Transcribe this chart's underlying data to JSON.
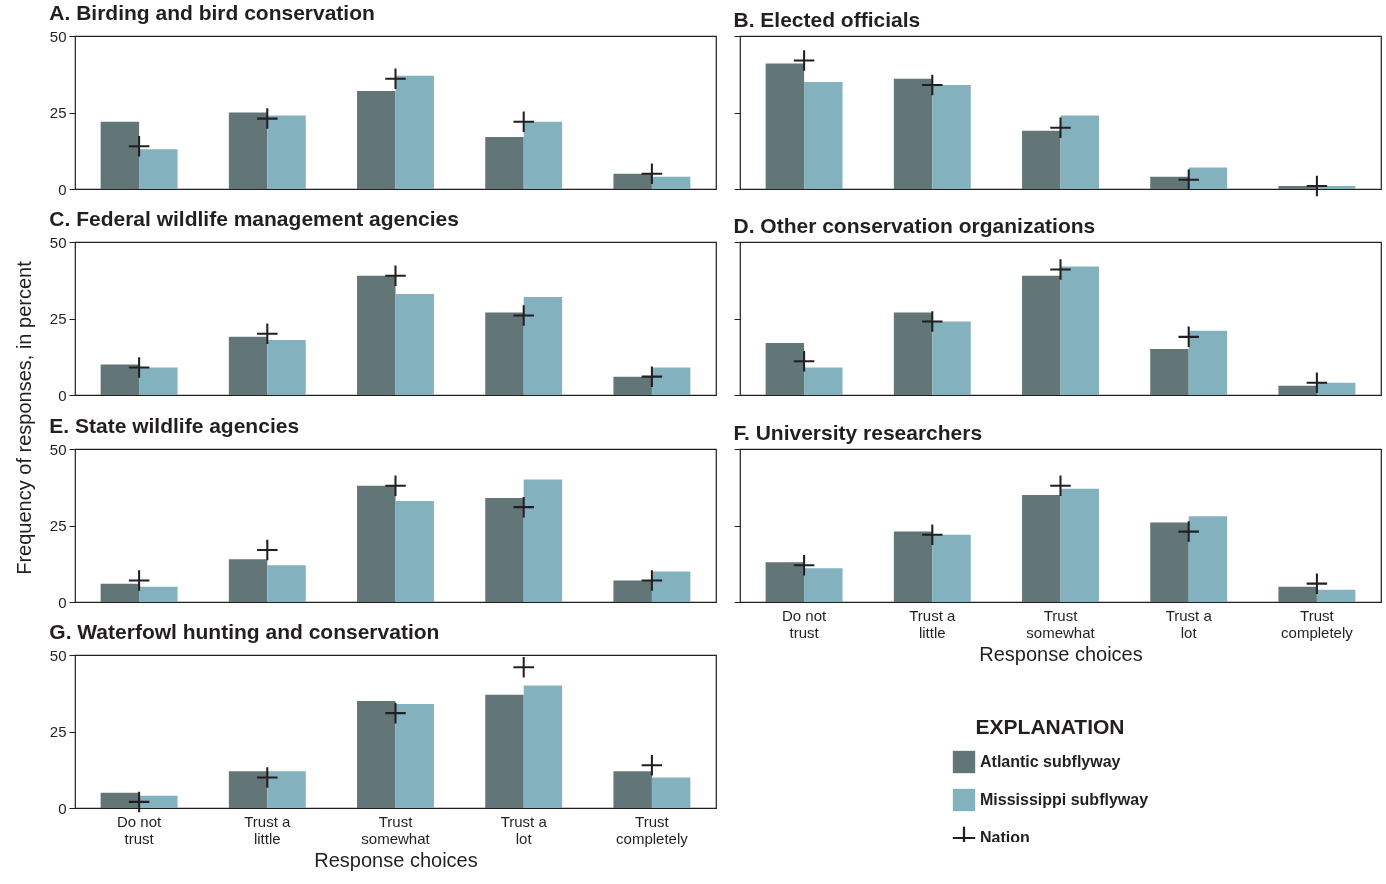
{
  "chart_data": [
    {
      "type": "bar",
      "title": "A. Birding and bird conservation",
      "categories": [
        "Do not trust",
        "Trust a little",
        "Trust somewhat",
        "Trust a lot",
        "Trust completely"
      ],
      "ylim": [
        0,
        50
      ],
      "yticks": [
        0,
        25,
        50
      ],
      "tick_labels": "y",
      "series": [
        {
          "color": "#627577",
          "values": [
            22,
            25,
            32,
            17,
            5
          ]
        },
        {
          "color": "#84b1be",
          "values": [
            13,
            24,
            37,
            22,
            4
          ]
        },
        {
          "type": "scatter",
          "marker": "cross",
          "color": "#231f20",
          "x": [
            "Do not trust",
            "Trust a little",
            "Trust somewhat",
            "Trust a lot",
            "Trust completely"
          ],
          "values": [
            14,
            23,
            36,
            22,
            5
          ]
        }
      ]
    },
    {
      "type": "bar",
      "title": "B. Elected officials",
      "categories": [
        "Do not trust",
        "Trust a little",
        "Trust somewhat",
        "Trust a lot",
        "Trust completely"
      ],
      "ylim": [
        0,
        50
      ],
      "yticks": [
        {
          "value": 0,
          "label": null
        },
        {
          "value": 25,
          "label": null
        },
        {
          "value": 50,
          "label": null
        }
      ],
      "tick_labels": false,
      "series": [
        {
          "color": "#627577",
          "values": [
            41,
            36,
            19,
            4,
            1
          ]
        },
        {
          "color": "#84b1be",
          "values": [
            35,
            34,
            24,
            7,
            1
          ]
        },
        {
          "type": "scatter",
          "marker": "cross",
          "color": "#231f20",
          "x": [
            "Do not trust",
            "Trust a little",
            "Trust somewhat",
            "Trust a lot",
            "Trust completely"
          ],
          "values": [
            42,
            34,
            20,
            3,
            1
          ]
        }
      ]
    },
    {
      "type": "bar",
      "title": "C. Federal wildlife management agencies",
      "categories": [
        "Do not trust",
        "Trust a little",
        "Trust somewhat",
        "Trust a lot",
        "Trust completely"
      ],
      "ylim": [
        0,
        50
      ],
      "yticks": [
        0,
        25,
        50
      ],
      "tick_labels": "y",
      "series": [
        {
          "color": "#627577",
          "values": [
            10,
            19,
            39,
            27,
            6
          ]
        },
        {
          "color": "#84b1be",
          "values": [
            9,
            18,
            33,
            32,
            9
          ]
        },
        {
          "type": "scatter",
          "marker": "cross",
          "color": "#231f20",
          "x": [
            "Do not trust",
            "Trust a little",
            "Trust somewhat",
            "Trust a lot",
            "Trust completely"
          ],
          "values": [
            9,
            20,
            39,
            26,
            6
          ]
        }
      ]
    },
    {
      "type": "bar",
      "title": "D. Other conservation organizations",
      "categories": [
        "Do not trust",
        "Trust a little",
        "Trust somewhat",
        "Trust a lot",
        "Trust completely"
      ],
      "ylim": [
        0,
        50
      ],
      "yticks": [
        {
          "value": 0,
          "label": null
        },
        {
          "value": 25,
          "label": null
        },
        {
          "value": 50,
          "label": null
        }
      ],
      "tick_labels": false,
      "series": [
        {
          "color": "#627577",
          "values": [
            17,
            27,
            39,
            15,
            3
          ]
        },
        {
          "color": "#84b1be",
          "values": [
            9,
            24,
            42,
            21,
            4
          ]
        },
        {
          "type": "scatter",
          "marker": "cross",
          "color": "#231f20",
          "x": [
            "Do not trust",
            "Trust a little",
            "Trust somewhat",
            "Trust a lot",
            "Trust completely"
          ],
          "values": [
            11,
            24,
            41,
            19,
            4
          ]
        }
      ]
    },
    {
      "type": "bar",
      "title": "E. State wildlife agencies",
      "ylabel": "Frequency of responses, in percent",
      "categories": [
        "Do not trust",
        "Trust a little",
        "Trust somewhat",
        "Trust a lot",
        "Trust completely"
      ],
      "ylim": [
        0,
        50
      ],
      "yticks": [
        0,
        25,
        50
      ],
      "tick_labels": "y",
      "series": [
        {
          "color": "#627577",
          "values": [
            6,
            14,
            38,
            34,
            7
          ]
        },
        {
          "color": "#84b1be",
          "values": [
            5,
            12,
            33,
            40,
            10
          ]
        },
        {
          "type": "scatter",
          "marker": "cross",
          "color": "#231f20",
          "x": [
            "Do not trust",
            "Trust a little",
            "Trust somewhat",
            "Trust a lot",
            "Trust completely"
          ],
          "values": [
            7,
            17,
            38,
            31,
            7
          ]
        }
      ]
    },
    {
      "type": "bar",
      "title": "F. University researchers",
      "xlabel": "Response choices",
      "categories": [
        "Do not trust",
        "Trust a little",
        "Trust somewhat",
        "Trust a lot",
        "Trust completely"
      ],
      "ylim": [
        0,
        50
      ],
      "yticks": [
        {
          "value": 0,
          "label": null
        },
        {
          "value": 25,
          "label": null
        },
        {
          "value": 50,
          "label": null
        }
      ],
      "tick_labels": "x",
      "legend": "bottom",
      "legend_title": "EXPLANATION",
      "series": [
        {
          "name": "Atlantic subflyway",
          "color": "#627577",
          "values": [
            13,
            23,
            35,
            26,
            5
          ]
        },
        {
          "name": "Mississippi subflyway",
          "color": "#84b1be",
          "values": [
            11,
            22,
            37,
            28,
            4
          ]
        },
        {
          "name": "Nation",
          "type": "scatter",
          "marker": "cross",
          "color": "#231f20",
          "x": [
            "Do not trust",
            "Trust a little",
            "Trust somewhat",
            "Trust a lot",
            "Trust completely"
          ],
          "values": [
            12,
            22,
            38,
            23,
            6
          ]
        }
      ]
    },
    {
      "type": "bar",
      "title": "G. Waterfowl hunting and conservation",
      "xlabel": "Response choices",
      "categories": [
        "Do not trust",
        "Trust a little",
        "Trust somewhat",
        "Trust a lot",
        "Trust completely"
      ],
      "ylim": [
        0,
        50
      ],
      "yticks": [
        0,
        25,
        50
      ],
      "series": [
        {
          "color": "#627577",
          "values": [
            5,
            12,
            35,
            37,
            12
          ]
        },
        {
          "color": "#84b1be",
          "values": [
            4,
            12,
            34,
            40,
            10
          ]
        },
        {
          "type": "scatter",
          "marker": "cross",
          "color": "#231f20",
          "x": [
            "Do not trust",
            "Trust a little",
            "Trust somewhat",
            "Trust a lot",
            "Trust completely"
          ],
          "values": [
            2,
            10,
            31,
            46,
            14
          ]
        }
      ]
    }
  ]
}
